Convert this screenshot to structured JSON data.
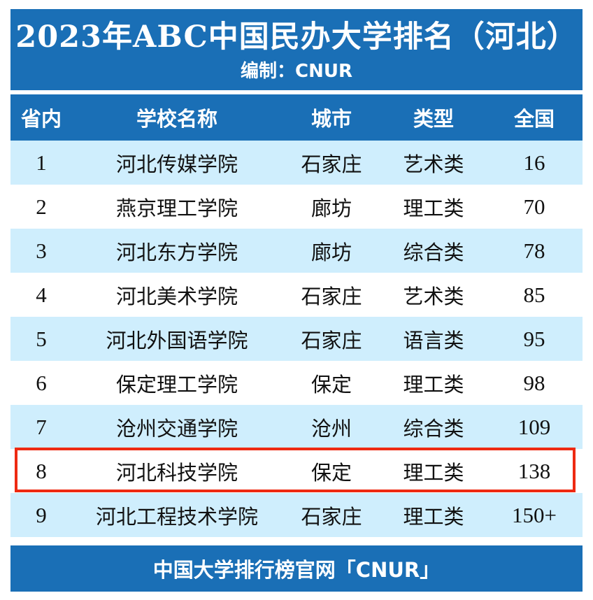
{
  "header": {
    "title": "2023年ABC中国民办大学排名（河北）",
    "subtitle": "编制：CNUR"
  },
  "table": {
    "columns": [
      "省内",
      "学校名称",
      "城市",
      "类型",
      "全国"
    ],
    "rows": [
      {
        "rank": "1",
        "name": "河北传媒学院",
        "city": "石家庄",
        "type": "艺术类",
        "national": "16"
      },
      {
        "rank": "2",
        "name": "燕京理工学院",
        "city": "廊坊",
        "type": "理工类",
        "national": "70"
      },
      {
        "rank": "3",
        "name": "河北东方学院",
        "city": "廊坊",
        "type": "综合类",
        "national": "78"
      },
      {
        "rank": "4",
        "name": "河北美术学院",
        "city": "石家庄",
        "type": "艺术类",
        "national": "85"
      },
      {
        "rank": "5",
        "name": "河北外国语学院",
        "city": "石家庄",
        "type": "语言类",
        "national": "95"
      },
      {
        "rank": "6",
        "name": "保定理工学院",
        "city": "保定",
        "type": "理工类",
        "national": "98"
      },
      {
        "rank": "7",
        "name": "沧州交通学院",
        "city": "沧州",
        "type": "综合类",
        "national": "109"
      },
      {
        "rank": "8",
        "name": "河北科技学院",
        "city": "保定",
        "type": "理工类",
        "national": "138"
      },
      {
        "rank": "9",
        "name": "河北工程技术学院",
        "city": "石家庄",
        "type": "理工类",
        "national": "150+"
      }
    ],
    "highlighted_row_rank": "8"
  },
  "footer": {
    "text": "中国大学排行榜官网「CNUR」"
  },
  "colors": {
    "header_blue": "#1a6fb6",
    "stripe_light_blue": "#cfeefd",
    "highlight_red": "#ee2a12"
  }
}
